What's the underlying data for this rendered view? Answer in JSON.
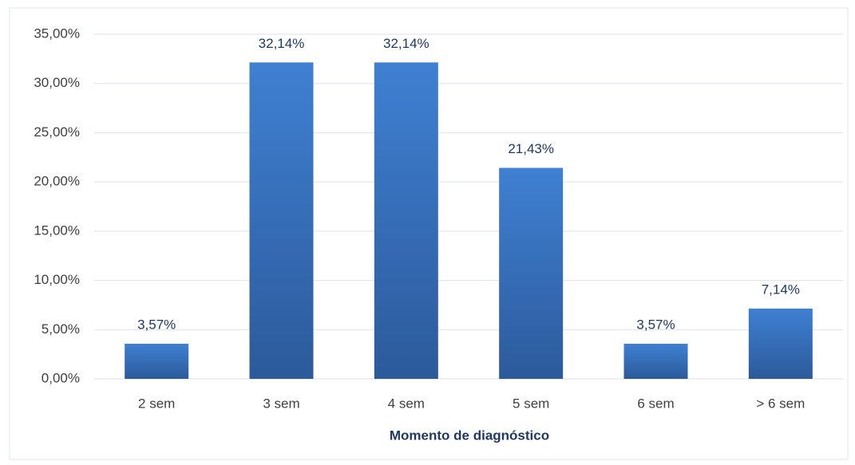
{
  "chart_data": {
    "type": "bar",
    "x_label": "Momento de diagnóstico",
    "categories": [
      "2 sem",
      "3 sem",
      "4 sem",
      "5 sem",
      "6 sem",
      "> 6 sem"
    ],
    "values": [
      3.57,
      32.14,
      32.14,
      21.43,
      3.57,
      7.14
    ],
    "value_labels": [
      "3,57%",
      "32,14%",
      "32,14%",
      "21,43%",
      "3,57%",
      "7,14%"
    ],
    "color": "#3a76c4",
    "ylim": [
      0,
      35
    ],
    "yticks": [
      {
        "value": 0,
        "label": "0,00%"
      },
      {
        "value": 5,
        "label": "5,00%"
      },
      {
        "value": 10,
        "label": "10,00%"
      },
      {
        "value": 15,
        "label": "15,00%"
      },
      {
        "value": 20,
        "label": "20,00%"
      },
      {
        "value": 25,
        "label": "25,00%"
      },
      {
        "value": 30,
        "label": "30,00%"
      },
      {
        "value": 35,
        "label": "35,00%"
      }
    ],
    "grid": true
  }
}
